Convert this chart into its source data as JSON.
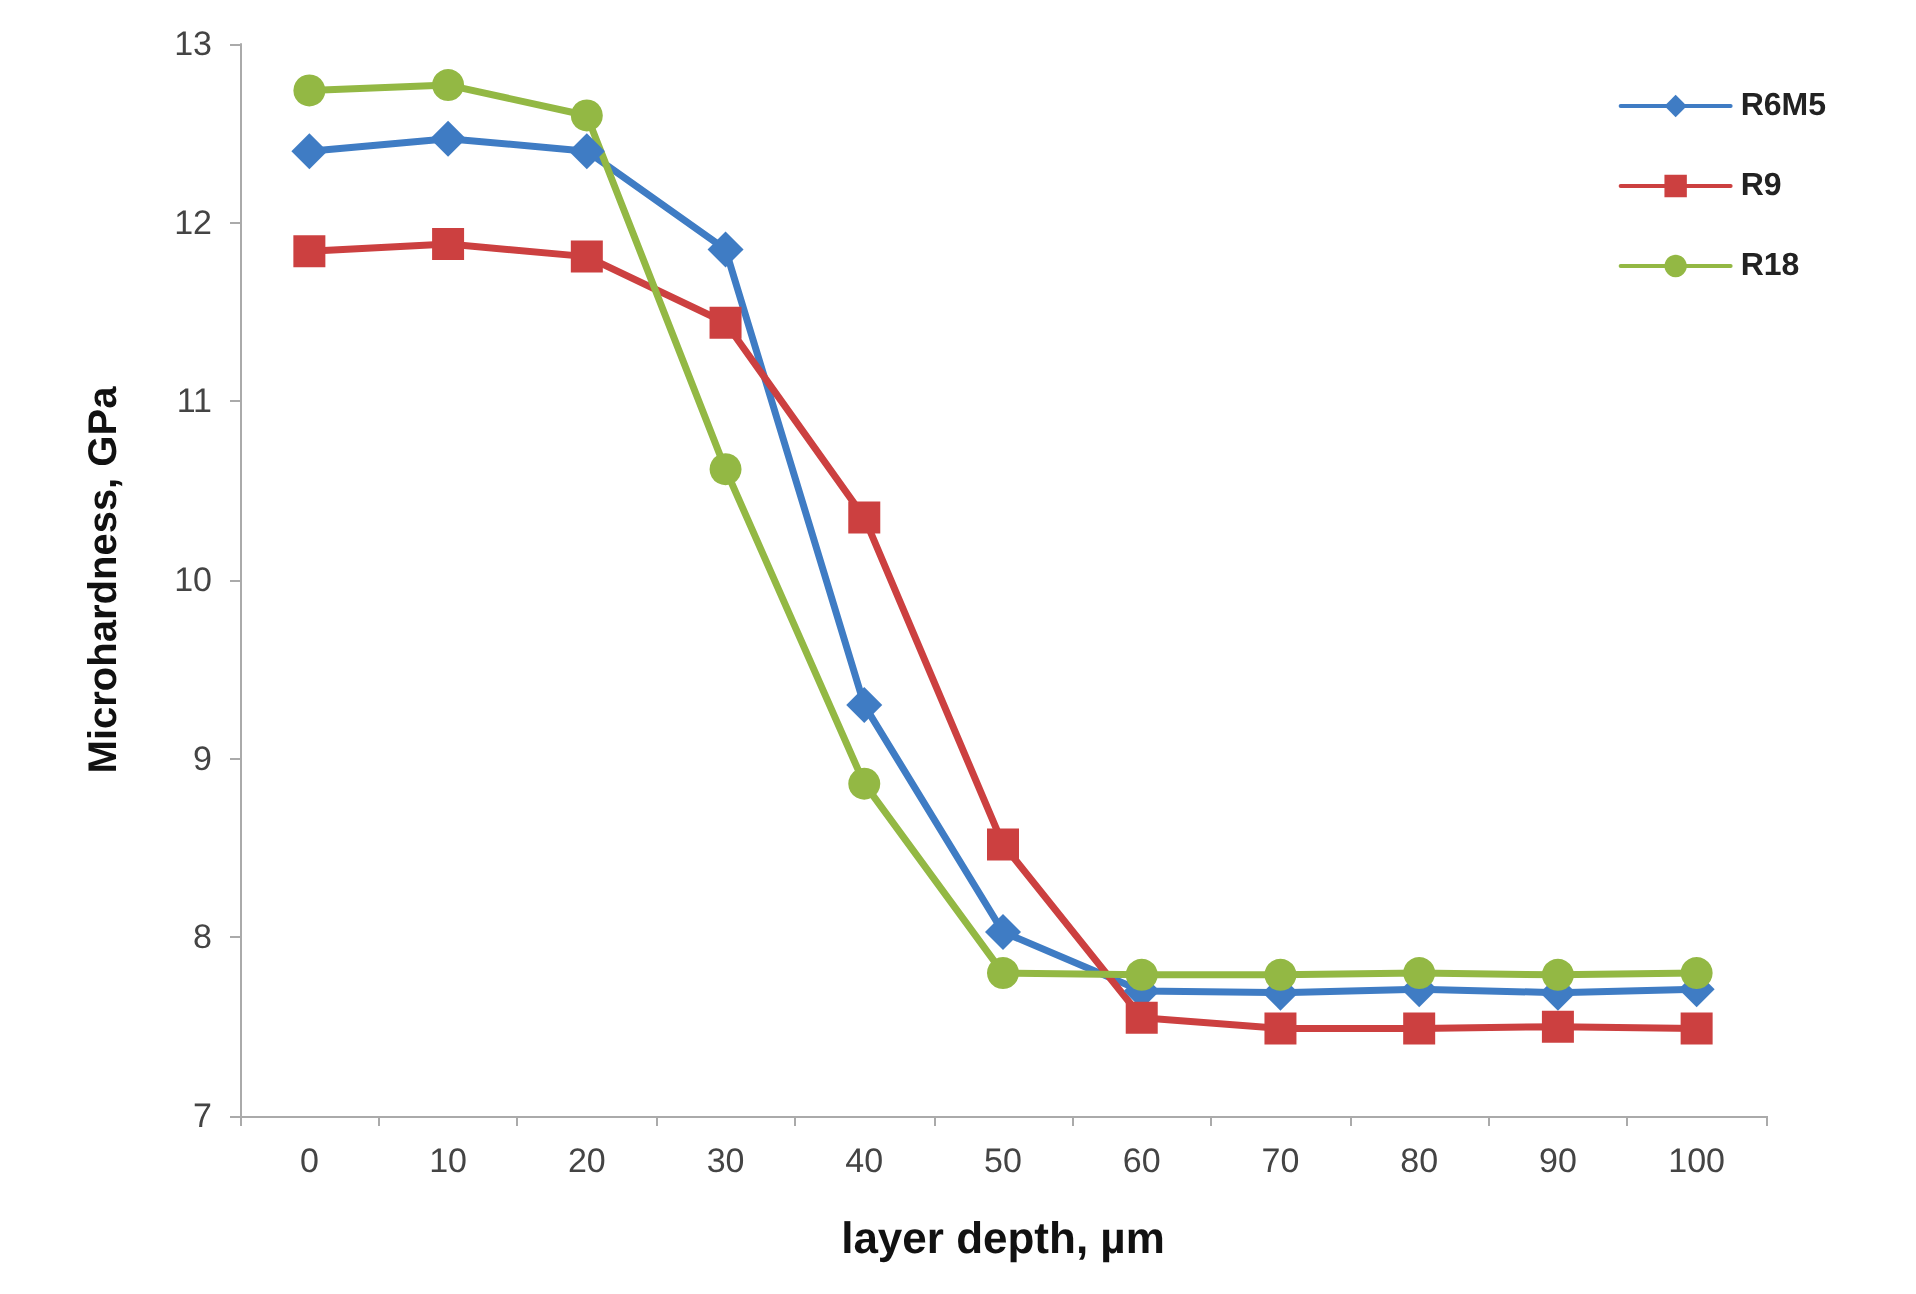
{
  "chart_data": {
    "type": "line",
    "xlabel": "layer depth, µm",
    "ylabel": "Microhardness, GPa",
    "categories": [
      "0",
      "10",
      "20",
      "30",
      "40",
      "50",
      "60",
      "70",
      "80",
      "90",
      "100"
    ],
    "series": [
      {
        "name": "R6M5",
        "color": "#3f7cc4",
        "marker": "diamond",
        "values": [
          12.4,
          12.47,
          12.4,
          11.85,
          9.3,
          8.03,
          7.7,
          7.69,
          7.71,
          7.69,
          7.71
        ]
      },
      {
        "name": "R9",
        "color": "#cc4040",
        "marker": "square",
        "values": [
          11.84,
          11.88,
          11.81,
          11.44,
          10.35,
          8.52,
          7.55,
          7.49,
          7.49,
          7.5,
          7.49
        ]
      },
      {
        "name": "R18",
        "color": "#93b844",
        "marker": "circle",
        "values": [
          12.74,
          12.77,
          12.6,
          10.62,
          8.86,
          7.8,
          7.79,
          7.79,
          7.8,
          7.79,
          7.8
        ]
      }
    ],
    "ylim": [
      7,
      13
    ],
    "yticks": [
      7,
      8,
      9,
      10,
      11,
      12,
      13
    ],
    "grid": false,
    "legend": "top right",
    "line_style": "solid"
  }
}
